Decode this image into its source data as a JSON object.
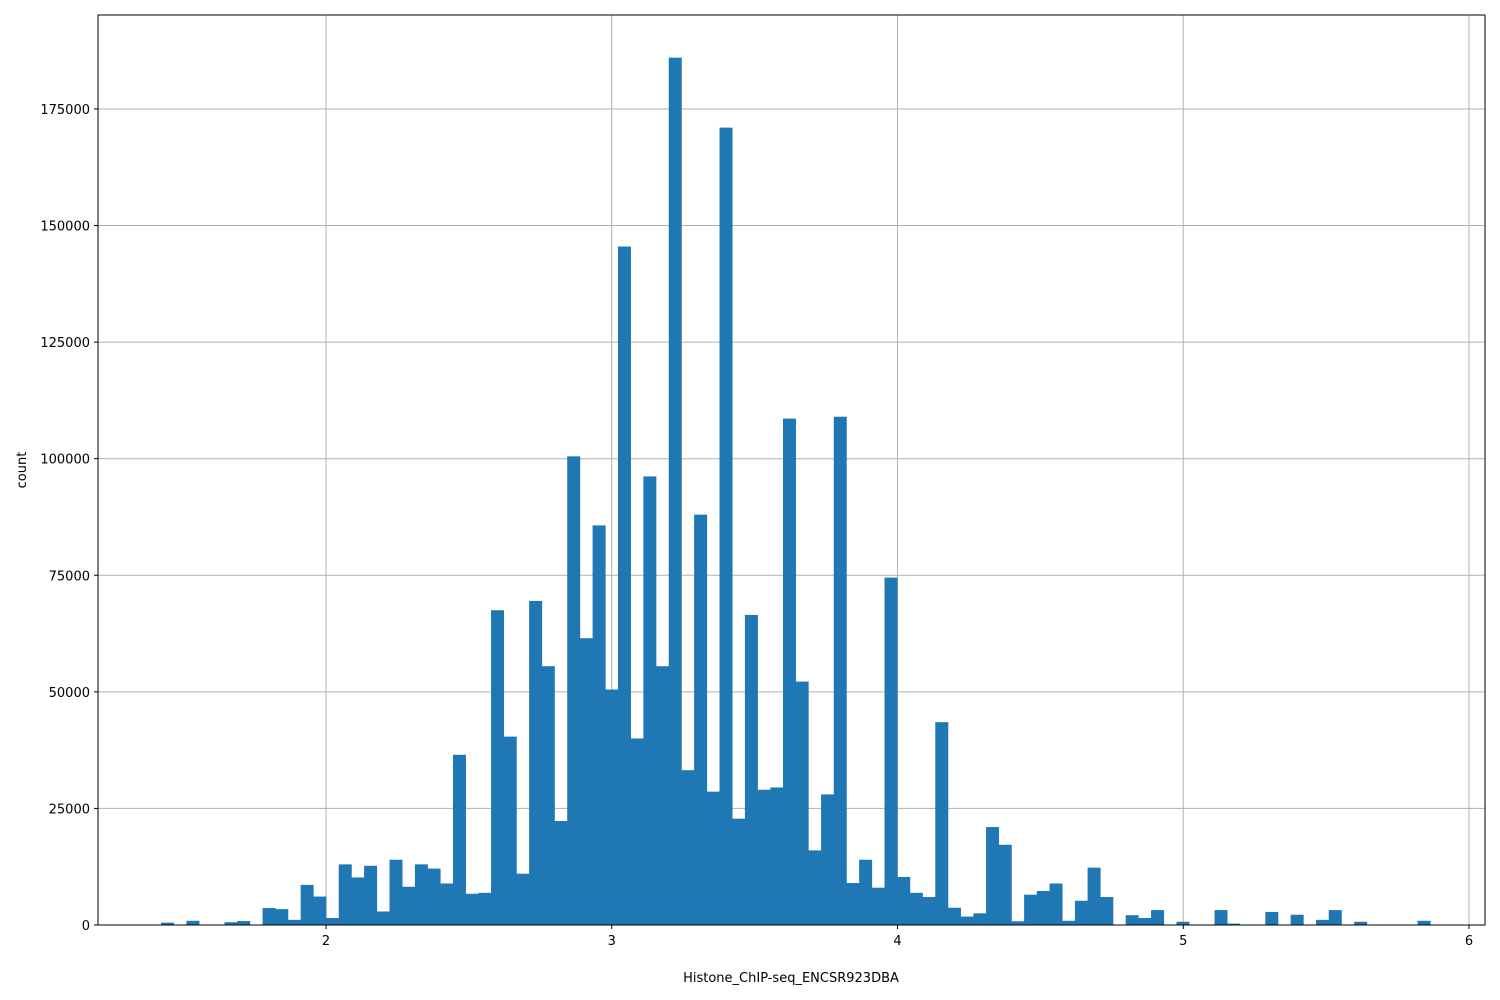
{
  "chart_data": {
    "type": "bar",
    "subtype": "histogram",
    "title": "",
    "xlabel": "Histone_ChIP-seq_ENCSR923DBA",
    "ylabel": "count",
    "xlim": [
      1.202,
      6.056
    ],
    "ylim": [
      0,
      195150
    ],
    "xticks": [
      2,
      3,
      4,
      5,
      6
    ],
    "yticks": [
      0,
      25000,
      50000,
      75000,
      100000,
      125000,
      150000,
      175000
    ],
    "grid": true,
    "bar_color": "#1f77b4",
    "grid_color": "#b0b0b0",
    "bin_start": 1.4226,
    "bin_width": 0.04442,
    "counts": [
      500,
      0,
      900,
      0,
      0,
      600,
      850,
      0,
      3650,
      3400,
      1100,
      8600,
      6100,
      1500,
      13000,
      10200,
      12700,
      2900,
      14000,
      8200,
      13000,
      12100,
      8900,
      36500,
      6700,
      6900,
      67500,
      40400,
      11000,
      69500,
      55500,
      22300,
      100500,
      61500,
      85700,
      50500,
      145500,
      40000,
      96200,
      55500,
      186000,
      33200,
      88000,
      28600,
      171000,
      22800,
      66500,
      29000,
      29500,
      108600,
      52200,
      16000,
      28000,
      109000,
      9000,
      14000,
      8000,
      74500,
      10300,
      6900,
      6000,
      43500,
      3700,
      1800,
      2500,
      21000,
      17200,
      800,
      6500,
      7300,
      8900,
      900,
      5200,
      12300,
      6000,
      0,
      2100,
      1500,
      3200,
      0,
      700,
      0,
      0,
      3200,
      300,
      0,
      0,
      2800,
      0,
      2200,
      0,
      1100,
      3200,
      0,
      700,
      0,
      0,
      0,
      0,
      900
    ]
  }
}
